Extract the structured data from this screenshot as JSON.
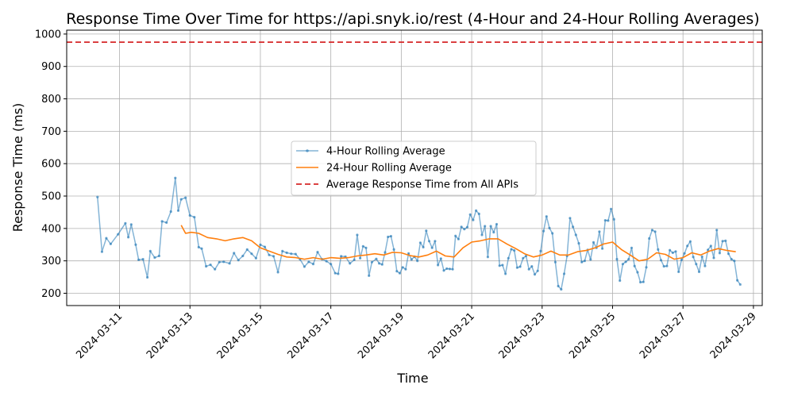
{
  "chart_data": {
    "type": "line",
    "title": "Response Time Over Time for https://api.snyk.io/rest (4-Hour and 24-Hour Rolling Averages)",
    "xlabel": "Time",
    "ylabel": "Response Time (ms)",
    "xlim": [
      "2024-03-09T12:00",
      "2024-03-29T06:00"
    ],
    "ylim": [
      162,
      1012
    ],
    "x_ticks": [
      "2024-03-11",
      "2024-03-13",
      "2024-03-15",
      "2024-03-17",
      "2024-03-19",
      "2024-03-21",
      "2024-03-23",
      "2024-03-25",
      "2024-03-27",
      "2024-03-29"
    ],
    "y_ticks": [
      200,
      300,
      400,
      500,
      600,
      700,
      800,
      900,
      1000
    ],
    "grid": true,
    "legend_position": "center",
    "series": [
      {
        "name": "4-Hour Rolling Average",
        "color": "#1f77b4",
        "style": "line-markers",
        "points": [
          [
            "2024-03-10T09:00",
            497
          ],
          [
            "2024-03-10T12:00",
            328
          ],
          [
            "2024-03-10T15:00",
            370
          ],
          [
            "2024-03-10T18:00",
            352
          ],
          [
            "2024-03-10T23:00",
            382
          ],
          [
            "2024-03-11T04:00",
            416
          ],
          [
            "2024-03-11T06:00",
            373
          ],
          [
            "2024-03-11T08:00",
            412
          ],
          [
            "2024-03-11T11:00",
            350
          ],
          [
            "2024-03-11T13:00",
            303
          ],
          [
            "2024-03-11T16:00",
            305
          ],
          [
            "2024-03-11T19:00",
            249
          ],
          [
            "2024-03-11T21:00",
            330
          ],
          [
            "2024-03-12T00:00",
            310
          ],
          [
            "2024-03-12T03:00",
            315
          ],
          [
            "2024-03-12T05:00",
            422
          ],
          [
            "2024-03-12T08:00",
            418
          ],
          [
            "2024-03-12T11:00",
            452
          ],
          [
            "2024-03-12T14:00",
            556
          ],
          [
            "2024-03-12T16:00",
            455
          ],
          [
            "2024-03-12T18:00",
            490
          ],
          [
            "2024-03-12T21:00",
            495
          ],
          [
            "2024-03-13T00:00",
            440
          ],
          [
            "2024-03-13T03:00",
            435
          ],
          [
            "2024-03-13T06:00",
            342
          ],
          [
            "2024-03-13T08:00",
            338
          ],
          [
            "2024-03-13T11:00",
            283
          ],
          [
            "2024-03-13T14:00",
            288
          ],
          [
            "2024-03-13T17:00",
            274
          ],
          [
            "2024-03-13T20:00",
            296
          ],
          [
            "2024-03-13T23:00",
            297
          ],
          [
            "2024-03-14T03:00",
            292
          ],
          [
            "2024-03-14T06:00",
            324
          ],
          [
            "2024-03-14T09:00",
            302
          ],
          [
            "2024-03-14T12:00",
            315
          ],
          [
            "2024-03-14T15:00",
            335
          ],
          [
            "2024-03-14T18:00",
            322
          ],
          [
            "2024-03-14T21:00",
            308
          ],
          [
            "2024-03-15T00:00",
            350
          ],
          [
            "2024-03-15T03:00",
            343
          ],
          [
            "2024-03-15T06:00",
            318
          ],
          [
            "2024-03-15T09:00",
            314
          ],
          [
            "2024-03-15T12:00",
            265
          ],
          [
            "2024-03-15T15:00",
            330
          ],
          [
            "2024-03-15T18:00",
            325
          ],
          [
            "2024-03-15T21:00",
            322
          ],
          [
            "2024-03-16T00:00",
            321
          ],
          [
            "2024-03-16T03:00",
            305
          ],
          [
            "2024-03-16T06:00",
            282
          ],
          [
            "2024-03-16T09:00",
            297
          ],
          [
            "2024-03-16T12:00",
            290
          ],
          [
            "2024-03-16T15:00",
            327
          ],
          [
            "2024-03-16T18:00",
            305
          ],
          [
            "2024-03-16T21:00",
            299
          ],
          [
            "2024-03-17T00:00",
            290
          ],
          [
            "2024-03-17T03:00",
            262
          ],
          [
            "2024-03-17T05:00",
            260
          ],
          [
            "2024-03-17T07:00",
            314
          ],
          [
            "2024-03-17T10:00",
            313
          ],
          [
            "2024-03-17T13:00",
            292
          ],
          [
            "2024-03-17T16:00",
            303
          ],
          [
            "2024-03-17T18:00",
            380
          ],
          [
            "2024-03-17T20:00",
            308
          ],
          [
            "2024-03-17T22:00",
            345
          ],
          [
            "2024-03-18T00:00",
            340
          ],
          [
            "2024-03-18T02:00",
            254
          ],
          [
            "2024-03-18T04:00",
            296
          ],
          [
            "2024-03-18T07:00",
            306
          ],
          [
            "2024-03-18T09:00",
            292
          ],
          [
            "2024-03-18T11:00",
            289
          ],
          [
            "2024-03-18T13:00",
            326
          ],
          [
            "2024-03-18T15:00",
            374
          ],
          [
            "2024-03-18T17:00",
            376
          ],
          [
            "2024-03-18T19:00",
            335
          ],
          [
            "2024-03-18T21:00",
            268
          ],
          [
            "2024-03-18T23:00",
            262
          ],
          [
            "2024-03-19T01:00",
            280
          ],
          [
            "2024-03-19T03:00",
            274
          ],
          [
            "2024-03-19T05:00",
            323
          ],
          [
            "2024-03-19T07:00",
            304
          ],
          [
            "2024-03-19T09:00",
            313
          ],
          [
            "2024-03-19T11:00",
            300
          ],
          [
            "2024-03-19T13:00",
            356
          ],
          [
            "2024-03-19T15:00",
            342
          ],
          [
            "2024-03-19T17:00",
            393
          ],
          [
            "2024-03-19T19:00",
            361
          ],
          [
            "2024-03-19T21:00",
            340
          ],
          [
            "2024-03-19T23:00",
            361
          ],
          [
            "2024-03-20T01:00",
            287
          ],
          [
            "2024-03-20T03:00",
            307
          ],
          [
            "2024-03-20T05:00",
            270
          ],
          [
            "2024-03-20T07:00",
            276
          ],
          [
            "2024-03-20T09:00",
            275
          ],
          [
            "2024-03-20T11:00",
            274
          ],
          [
            "2024-03-20T13:00",
            377
          ],
          [
            "2024-03-20T15:00",
            367
          ],
          [
            "2024-03-20T17:00",
            405
          ],
          [
            "2024-03-20T19:00",
            398
          ],
          [
            "2024-03-20T21:00",
            404
          ],
          [
            "2024-03-20T23:00",
            443
          ],
          [
            "2024-03-21T01:00",
            426
          ],
          [
            "2024-03-21T03:00",
            455
          ],
          [
            "2024-03-21T05:00",
            445
          ],
          [
            "2024-03-21T07:00",
            380
          ],
          [
            "2024-03-21T09:00",
            407
          ],
          [
            "2024-03-21T11:00",
            312
          ],
          [
            "2024-03-21T13:00",
            407
          ],
          [
            "2024-03-21T15:00",
            388
          ],
          [
            "2024-03-21T17:00",
            413
          ],
          [
            "2024-03-21T19:00",
            285
          ],
          [
            "2024-03-21T21:00",
            287
          ],
          [
            "2024-03-21T23:00",
            260
          ],
          [
            "2024-03-22T01:00",
            308
          ],
          [
            "2024-03-22T03:00",
            336
          ],
          [
            "2024-03-22T05:00",
            332
          ],
          [
            "2024-03-22T07:00",
            279
          ],
          [
            "2024-03-22T09:00",
            282
          ],
          [
            "2024-03-22T11:00",
            308
          ],
          [
            "2024-03-22T13:00",
            315
          ],
          [
            "2024-03-22T15:00",
            274
          ],
          [
            "2024-03-22T17:00",
            283
          ],
          [
            "2024-03-22T19:00",
            258
          ],
          [
            "2024-03-22T21:00",
            269
          ],
          [
            "2024-03-22T23:00",
            330
          ],
          [
            "2024-03-23T01:00",
            392
          ],
          [
            "2024-03-23T03:00",
            437
          ],
          [
            "2024-03-23T05:00",
            401
          ],
          [
            "2024-03-23T07:00",
            385
          ],
          [
            "2024-03-23T09:00",
            296
          ],
          [
            "2024-03-23T11:00",
            222
          ],
          [
            "2024-03-23T13:00",
            212
          ],
          [
            "2024-03-23T15:00",
            260
          ],
          [
            "2024-03-23T17:00",
            315
          ],
          [
            "2024-03-23T19:00",
            432
          ],
          [
            "2024-03-23T21:00",
            405
          ],
          [
            "2024-03-23T23:00",
            380
          ],
          [
            "2024-03-24T01:00",
            354
          ],
          [
            "2024-03-24T03:00",
            296
          ],
          [
            "2024-03-24T05:00",
            300
          ],
          [
            "2024-03-24T07:00",
            334
          ],
          [
            "2024-03-24T09:00",
            304
          ],
          [
            "2024-03-24T11:00",
            357
          ],
          [
            "2024-03-24T13:00",
            340
          ],
          [
            "2024-03-24T15:00",
            390
          ],
          [
            "2024-03-24T17:00",
            338
          ],
          [
            "2024-03-24T19:00",
            425
          ],
          [
            "2024-03-24T21:00",
            424
          ],
          [
            "2024-03-24T23:00",
            460
          ],
          [
            "2024-03-25T01:00",
            428
          ],
          [
            "2024-03-25T03:00",
            305
          ],
          [
            "2024-03-25T05:00",
            239
          ],
          [
            "2024-03-25T07:00",
            290
          ],
          [
            "2024-03-25T09:00",
            297
          ],
          [
            "2024-03-25T11:00",
            305
          ],
          [
            "2024-03-25T13:00",
            340
          ],
          [
            "2024-03-25T15:00",
            284
          ],
          [
            "2024-03-25T17:00",
            265
          ],
          [
            "2024-03-25T19:00",
            234
          ],
          [
            "2024-03-25T21:00",
            235
          ],
          [
            "2024-03-25T23:00",
            280
          ],
          [
            "2024-03-26T01:00",
            369
          ],
          [
            "2024-03-26T03:00",
            395
          ],
          [
            "2024-03-26T05:00",
            390
          ],
          [
            "2024-03-26T07:00",
            335
          ],
          [
            "2024-03-26T09:00",
            302
          ],
          [
            "2024-03-26T11:00",
            283
          ],
          [
            "2024-03-26T13:00",
            284
          ],
          [
            "2024-03-26T15:00",
            333
          ],
          [
            "2024-03-26T17:00",
            325
          ],
          [
            "2024-03-26T19:00",
            329
          ],
          [
            "2024-03-26T21:00",
            266
          ],
          [
            "2024-03-26T23:00",
            303
          ],
          [
            "2024-03-27T01:00",
            323
          ],
          [
            "2024-03-27T03:00",
            346
          ],
          [
            "2024-03-27T05:00",
            360
          ],
          [
            "2024-03-27T07:00",
            312
          ],
          [
            "2024-03-27T09:00",
            290
          ],
          [
            "2024-03-27T11:00",
            266
          ],
          [
            "2024-03-27T13:00",
            313
          ],
          [
            "2024-03-27T15:00",
            284
          ],
          [
            "2024-03-27T17:00",
            334
          ],
          [
            "2024-03-27T19:00",
            346
          ],
          [
            "2024-03-27T21:00",
            309
          ],
          [
            "2024-03-27T23:00",
            395
          ],
          [
            "2024-03-28T01:00",
            324
          ],
          [
            "2024-03-28T03:00",
            361
          ],
          [
            "2024-03-28T05:00",
            362
          ],
          [
            "2024-03-28T07:00",
            322
          ],
          [
            "2024-03-28T09:00",
            305
          ],
          [
            "2024-03-28T11:00",
            300
          ],
          [
            "2024-03-28T13:00",
            240
          ],
          [
            "2024-03-28T15:00",
            227
          ]
        ]
      },
      {
        "name": "24-Hour Rolling Average",
        "color": "#ff7f0e",
        "style": "line",
        "points": [
          [
            "2024-03-12T18:00",
            410
          ],
          [
            "2024-03-12T21:00",
            385
          ],
          [
            "2024-03-13T01:00",
            388
          ],
          [
            "2024-03-13T06:00",
            385
          ],
          [
            "2024-03-13T12:00",
            372
          ],
          [
            "2024-03-13T18:00",
            368
          ],
          [
            "2024-03-14T00:00",
            362
          ],
          [
            "2024-03-14T06:00",
            368
          ],
          [
            "2024-03-14T12:00",
            372
          ],
          [
            "2024-03-14T18:00",
            362
          ],
          [
            "2024-03-15T00:00",
            340
          ],
          [
            "2024-03-15T06:00",
            330
          ],
          [
            "2024-03-15T12:00",
            320
          ],
          [
            "2024-03-15T18:00",
            312
          ],
          [
            "2024-03-16T00:00",
            310
          ],
          [
            "2024-03-16T06:00",
            305
          ],
          [
            "2024-03-16T12:00",
            310
          ],
          [
            "2024-03-16T18:00",
            305
          ],
          [
            "2024-03-17T00:00",
            310
          ],
          [
            "2024-03-17T06:00",
            308
          ],
          [
            "2024-03-17T12:00",
            310
          ],
          [
            "2024-03-17T18:00",
            315
          ],
          [
            "2024-03-18T00:00",
            318
          ],
          [
            "2024-03-18T06:00",
            322
          ],
          [
            "2024-03-18T12:00",
            318
          ],
          [
            "2024-03-18T18:00",
            326
          ],
          [
            "2024-03-19T00:00",
            325
          ],
          [
            "2024-03-19T06:00",
            316
          ],
          [
            "2024-03-19T12:00",
            312
          ],
          [
            "2024-03-19T18:00",
            318
          ],
          [
            "2024-03-20T00:00",
            330
          ],
          [
            "2024-03-20T06:00",
            315
          ],
          [
            "2024-03-20T12:00",
            312
          ],
          [
            "2024-03-20T18:00",
            340
          ],
          [
            "2024-03-21T00:00",
            358
          ],
          [
            "2024-03-21T06:00",
            362
          ],
          [
            "2024-03-21T12:00",
            368
          ],
          [
            "2024-03-21T18:00",
            368
          ],
          [
            "2024-03-22T00:00",
            352
          ],
          [
            "2024-03-22T06:00",
            338
          ],
          [
            "2024-03-22T12:00",
            322
          ],
          [
            "2024-03-22T18:00",
            312
          ],
          [
            "2024-03-23T00:00",
            318
          ],
          [
            "2024-03-23T06:00",
            330
          ],
          [
            "2024-03-23T12:00",
            318
          ],
          [
            "2024-03-23T18:00",
            318
          ],
          [
            "2024-03-24T00:00",
            328
          ],
          [
            "2024-03-24T06:00",
            332
          ],
          [
            "2024-03-24T12:00",
            340
          ],
          [
            "2024-03-24T18:00",
            352
          ],
          [
            "2024-03-25T00:00",
            358
          ],
          [
            "2024-03-25T06:00",
            335
          ],
          [
            "2024-03-25T12:00",
            318
          ],
          [
            "2024-03-25T18:00",
            300
          ],
          [
            "2024-03-26T00:00",
            305
          ],
          [
            "2024-03-26T06:00",
            325
          ],
          [
            "2024-03-26T12:00",
            320
          ],
          [
            "2024-03-26T18:00",
            305
          ],
          [
            "2024-03-27T00:00",
            310
          ],
          [
            "2024-03-27T06:00",
            325
          ],
          [
            "2024-03-27T12:00",
            318
          ],
          [
            "2024-03-27T18:00",
            330
          ],
          [
            "2024-03-28T00:00",
            338
          ],
          [
            "2024-03-28T06:00",
            332
          ],
          [
            "2024-03-28T12:00",
            328
          ]
        ]
      },
      {
        "name": "Average Response Time from All APIs",
        "color": "#d62728",
        "style": "dashed",
        "value": 975
      }
    ]
  }
}
